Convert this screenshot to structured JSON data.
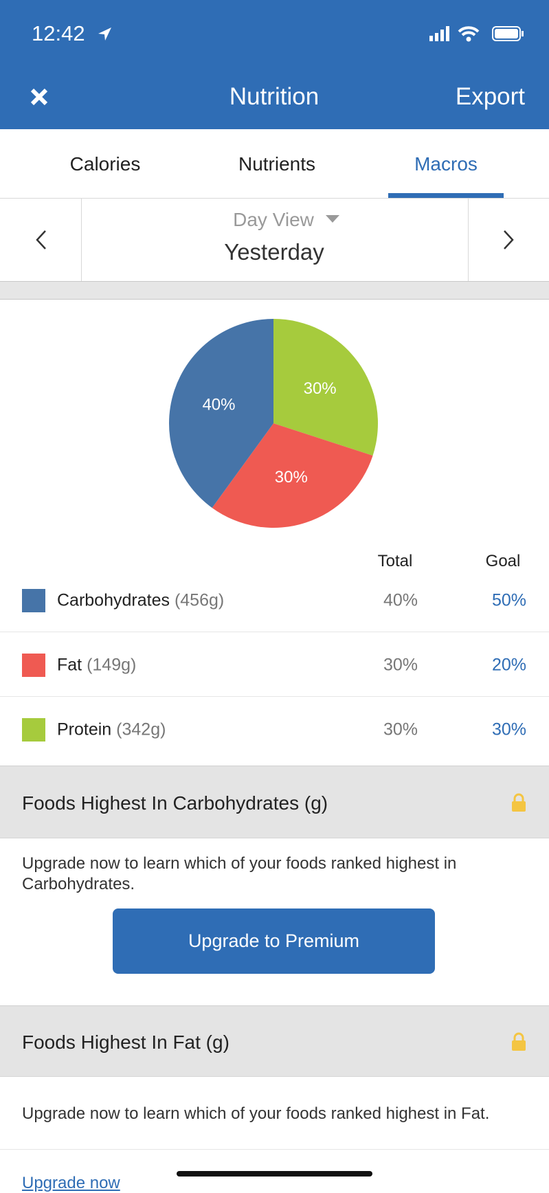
{
  "status_bar": {
    "time": "12:42"
  },
  "header": {
    "title": "Nutrition",
    "action": "Export"
  },
  "tabs": [
    "Calories",
    "Nutrients",
    "Macros"
  ],
  "date_nav": {
    "view": "Day View",
    "date": "Yesterday"
  },
  "chart_data": {
    "type": "pie",
    "categories": [
      "Carbohydrates",
      "Fat",
      "Protein"
    ],
    "values": [
      40,
      30,
      30
    ],
    "value_labels": [
      "40%",
      "30%",
      "30%"
    ],
    "colors": [
      "#4674a8",
      "#ef5a52",
      "#a6cb3d"
    ]
  },
  "macros_table": {
    "columns": [
      "Total",
      "Goal"
    ],
    "rows": [
      {
        "grams": "(456g)",
        "total": "40%",
        "goal": "50%"
      },
      {
        "grams": "(149g)",
        "total": "30%",
        "goal": "20%"
      },
      {
        "grams": "(342g)",
        "total": "30%",
        "goal": "30%"
      }
    ]
  },
  "sections": [
    {
      "title": "Foods Highest In Carbohydrates (g)",
      "text": "Upgrade now to learn which of your foods ranked highest in Carbohydrates.",
      "button": "Upgrade to Premium"
    },
    {
      "title": "Foods Highest In Fat (g)",
      "text": "Upgrade now to learn which of your foods ranked highest in Fat.",
      "link": "Upgrade now"
    }
  ]
}
